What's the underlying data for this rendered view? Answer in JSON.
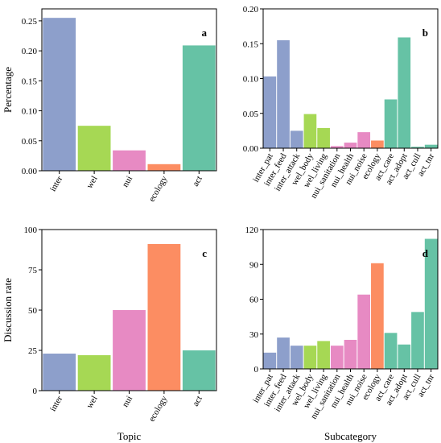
{
  "chart_data": [
    {
      "panel": "a",
      "type": "bar",
      "categories": [
        "inter",
        "wel",
        "nui",
        "ecology",
        "act"
      ],
      "values": [
        0.255,
        0.075,
        0.034,
        0.011,
        0.209
      ],
      "colors": [
        "#8d9fcb",
        "#a6d854",
        "#e78ac3",
        "#fc8d62",
        "#66c2a5"
      ],
      "ylabel": "Percentage",
      "xlabel": "",
      "ylim": [
        0,
        0.27
      ],
      "yticks": [
        0.0,
        0.05,
        0.1,
        0.15,
        0.2,
        0.25
      ],
      "ytick_labels": [
        "0.00",
        "0.05",
        "0.10",
        "0.15",
        "0.20",
        "0.25"
      ]
    },
    {
      "panel": "b",
      "type": "bar",
      "categories": [
        "inter_pat",
        "inter_feed",
        "inter_attack",
        "wel_body",
        "wel_living",
        "nui_sanitation",
        "nui_health",
        "nui_noise",
        "ecology",
        "act_care",
        "act_adopt",
        "act_cull",
        "act_tnr"
      ],
      "values": [
        0.103,
        0.155,
        0.025,
        0.049,
        0.029,
        0.003,
        0.008,
        0.023,
        0.011,
        0.07,
        0.159,
        0.002,
        0.005
      ],
      "colors": [
        "#8d9fcb",
        "#8d9fcb",
        "#8d9fcb",
        "#a6d854",
        "#a6d854",
        "#e78ac3",
        "#e78ac3",
        "#e78ac3",
        "#fc8d62",
        "#66c2a5",
        "#66c2a5",
        "#66c2a5",
        "#66c2a5"
      ],
      "ylabel": "",
      "xlabel": "",
      "ylim": [
        0,
        0.2
      ],
      "yticks": [
        0.0,
        0.05,
        0.1,
        0.15,
        0.2
      ],
      "ytick_labels": [
        "0.00",
        "0.05",
        "0.10",
        "0.15",
        "0.20"
      ]
    },
    {
      "panel": "c",
      "type": "bar",
      "categories": [
        "inter",
        "wel",
        "nui",
        "ecology",
        "act"
      ],
      "values": [
        23,
        22,
        50,
        91,
        25
      ],
      "colors": [
        "#8d9fcb",
        "#a6d854",
        "#e78ac3",
        "#fc8d62",
        "#66c2a5"
      ],
      "ylabel": "Discussion rate",
      "xlabel": "Topic",
      "ylim": [
        0,
        100
      ],
      "yticks": [
        0,
        25,
        50,
        75,
        100
      ],
      "ytick_labels": [
        "0",
        "25",
        "50",
        "75",
        "100"
      ]
    },
    {
      "panel": "d",
      "type": "bar",
      "categories": [
        "inter_pat",
        "inter_feed",
        "inter_attack",
        "wel_body",
        "wel_living",
        "nui_sanitation",
        "nui_health",
        "nui_noise",
        "ecology",
        "act_care",
        "act_adopt",
        "act_cull",
        "act_tnr"
      ],
      "values": [
        14,
        27,
        20,
        20,
        24,
        20,
        25,
        64,
        91,
        31,
        21,
        49,
        112
      ],
      "colors": [
        "#8d9fcb",
        "#8d9fcb",
        "#8d9fcb",
        "#a6d854",
        "#a6d854",
        "#e78ac3",
        "#e78ac3",
        "#e78ac3",
        "#fc8d62",
        "#66c2a5",
        "#66c2a5",
        "#66c2a5",
        "#66c2a5"
      ],
      "ylabel": "",
      "xlabel": "Subcategory",
      "ylim": [
        0,
        120
      ],
      "yticks": [
        0,
        30,
        60,
        90,
        120
      ],
      "ytick_labels": [
        "0",
        "30",
        "60",
        "90",
        "120"
      ]
    }
  ]
}
